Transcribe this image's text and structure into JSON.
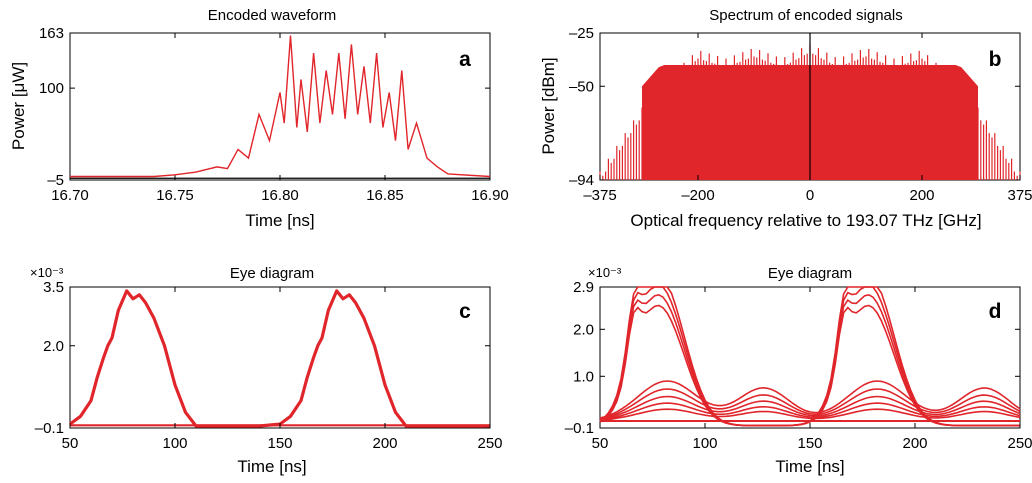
{
  "chart_data": [
    {
      "panel": "a",
      "type": "line",
      "title": "Encoded waveform",
      "xlabel": "Time [ns]",
      "ylabel": "Power [μW]",
      "xlim": [
        16.7,
        16.9
      ],
      "ylim": [
        -5,
        163
      ],
      "xticks": [
        "16.70",
        "16.75",
        "16.80",
        "16.85",
        "16.90"
      ],
      "yticks": [
        "163",
        "100",
        "–5"
      ],
      "color": "#e0262b",
      "series": [
        {
          "x": [
            16.7,
            16.74,
            16.75,
            16.76,
            16.77,
            16.775,
            16.78,
            16.785,
            16.79,
            16.795,
            16.8,
            16.802,
            16.805,
            16.808,
            16.81,
            16.813,
            16.816,
            16.819,
            16.822,
            16.825,
            16.828,
            16.831,
            16.834,
            16.837,
            16.84,
            16.843,
            16.846,
            16.849,
            16.852,
            16.855,
            16.858,
            16.861,
            16.865,
            16.87,
            16.875,
            16.88,
            16.9
          ],
          "y": [
            -1,
            -1,
            1,
            4,
            10,
            8,
            30,
            20,
            70,
            40,
            95,
            60,
            160,
            55,
            110,
            50,
            140,
            60,
            120,
            70,
            140,
            65,
            150,
            70,
            125,
            60,
            140,
            55,
            95,
            40,
            120,
            30,
            60,
            20,
            10,
            2,
            -1
          ]
        }
      ]
    },
    {
      "panel": "b",
      "type": "line",
      "title": "Spectrum of encoded signals",
      "xlabel": "Optical frequency relative to 193.07 THz [GHz]",
      "ylabel": "Power [dBm]",
      "xlim": [
        -375,
        375
      ],
      "ylim": [
        -94,
        -25
      ],
      "xticks": [
        "–375",
        "–200",
        "0",
        "200",
        "375"
      ],
      "yticks": [
        "–25",
        "–50",
        "–94"
      ],
      "color": "#e0262b",
      "envelope": {
        "x": [
          -375,
          -300,
          -250,
          -200,
          -150,
          -100,
          -50,
          0,
          50,
          100,
          150,
          200,
          250,
          300,
          375
        ],
        "upper": [
          -90,
          -60,
          -45,
          -33,
          -37,
          -32,
          -37,
          -30,
          -37,
          -32,
          -37,
          -33,
          -45,
          -60,
          -90
        ],
        "lower": [
          -94,
          -94,
          -92,
          -80,
          -82,
          -80,
          -82,
          -80,
          -82,
          -80,
          -82,
          -80,
          -92,
          -94,
          -94
        ]
      },
      "carrier_line_x": 0
    },
    {
      "panel": "c",
      "type": "line",
      "title": "Eye diagram",
      "xlabel": "Time [ns]",
      "ylabel": "",
      "exponent": "×10⁻³",
      "xlim": [
        50,
        250
      ],
      "ylim": [
        -0.1,
        3.5
      ],
      "xticks": [
        "50",
        "100",
        "150",
        "200",
        "250"
      ],
      "yticks": [
        "3.5",
        "2.0",
        "–0.1"
      ],
      "color": "#e0262b",
      "series": [
        {
          "x": [
            50,
            55,
            60,
            63,
            66,
            68,
            70,
            73,
            77,
            80,
            83,
            86,
            90,
            95,
            100,
            105,
            110,
            140,
            150,
            155,
            160,
            163,
            166,
            168,
            170,
            173,
            177,
            180,
            183,
            186,
            190,
            195,
            200,
            205,
            210,
            250
          ],
          "y": [
            0.0,
            0.2,
            0.6,
            1.2,
            1.7,
            2.0,
            2.2,
            2.9,
            3.4,
            3.2,
            3.3,
            3.1,
            2.7,
            2.0,
            1.0,
            0.3,
            -0.05,
            -0.05,
            0.0,
            0.2,
            0.6,
            1.2,
            1.7,
            2.0,
            2.2,
            2.9,
            3.4,
            3.2,
            3.3,
            3.1,
            2.7,
            2.0,
            1.0,
            0.3,
            -0.05,
            -0.05
          ]
        },
        {
          "x": [
            50,
            250
          ],
          "y": [
            -0.03,
            -0.03
          ]
        }
      ]
    },
    {
      "panel": "d",
      "type": "line",
      "title": "Eye diagram",
      "xlabel": "Time [ns]",
      "ylabel": "",
      "exponent": "×10⁻³",
      "xlim": [
        50,
        250
      ],
      "ylim": [
        -0.1,
        2.9
      ],
      "xticks": [
        "50",
        "100",
        "150",
        "200",
        "250"
      ],
      "yticks": [
        "2.9",
        "2.0",
        "1.0",
        "–0.1"
      ],
      "color": "#e0262b",
      "peak_times": [
        80,
        180
      ],
      "high_peaks": [
        2.85,
        2.65,
        2.45,
        2.25
      ],
      "small_bump_times": [
        128,
        233
      ],
      "small_bumps": [
        0.7,
        0.55,
        0.42,
        0.3,
        0.2
      ],
      "low_bumps": [
        0.85,
        0.68,
        0.52,
        0.38,
        0.25
      ]
    }
  ]
}
